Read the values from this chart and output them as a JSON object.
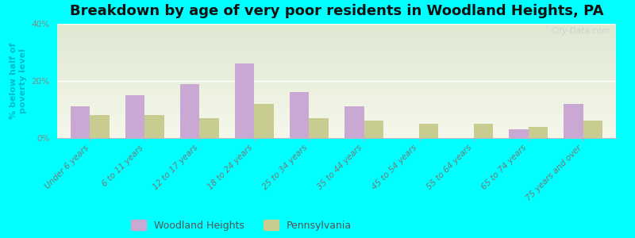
{
  "title": "Breakdown by age of very poor residents in Woodland Heights, PA",
  "ylabel": "% below half of\npoverty level",
  "categories": [
    "Under 6 years",
    "6 to 11 years",
    "12 to 17 years",
    "18 to 24 years",
    "25 to 34 years",
    "35 to 44 years",
    "45 to 54 years",
    "55 to 64 years",
    "65 to 74 years",
    "75 years and over"
  ],
  "woodland_heights": [
    11,
    15,
    19,
    26,
    16,
    11,
    0,
    0,
    3,
    12
  ],
  "pennsylvania": [
    8,
    8,
    7,
    12,
    7,
    6,
    5,
    5,
    4,
    6
  ],
  "woodland_color": "#c9a8d4",
  "pennsylvania_color": "#c8cc90",
  "ylim": [
    0,
    40
  ],
  "yticks": [
    0,
    20,
    40
  ],
  "ytick_labels": [
    "0%",
    "20%",
    "40%"
  ],
  "outer_background": "#00ffff",
  "title_fontsize": 13,
  "axis_label_fontsize": 8,
  "tick_fontsize": 7.5,
  "legend_labels": [
    "Woodland Heights",
    "Pennsylvania"
  ],
  "watermark": "City-Data.com",
  "bar_width": 0.35
}
